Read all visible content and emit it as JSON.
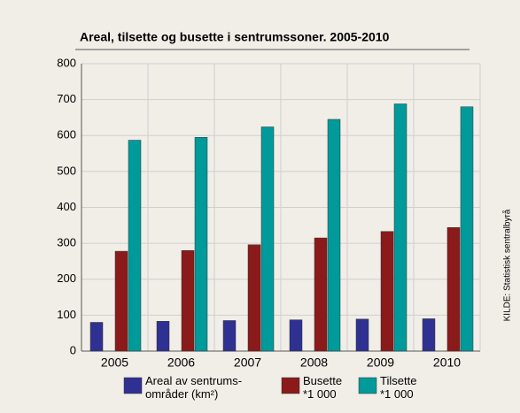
{
  "chart_data": {
    "type": "bar",
    "title": "Areal, tilsette og busette i sentrumssoner. 2005-2010",
    "source": "KILDE: Statistisk sentralbyrå",
    "categories": [
      "2005",
      "2006",
      "2007",
      "2008",
      "2009",
      "2010"
    ],
    "series": [
      {
        "name": "Areal av sentrums-\nområder (km²)",
        "color": "#2e3192",
        "values": [
          80,
          83,
          85,
          87,
          89,
          90
        ]
      },
      {
        "name": "Busette\n*1 000",
        "color": "#8b1a1a",
        "values": [
          278,
          280,
          296,
          315,
          333,
          344
        ]
      },
      {
        "name": "Tilsette\n*1 000",
        "color": "#009a9a",
        "values": [
          587,
          595,
          624,
          645,
          688,
          680
        ]
      }
    ],
    "ylim": [
      0,
      800
    ],
    "yticks": [
      0,
      100,
      200,
      300,
      400,
      500,
      600,
      700,
      800
    ],
    "grid": true
  }
}
